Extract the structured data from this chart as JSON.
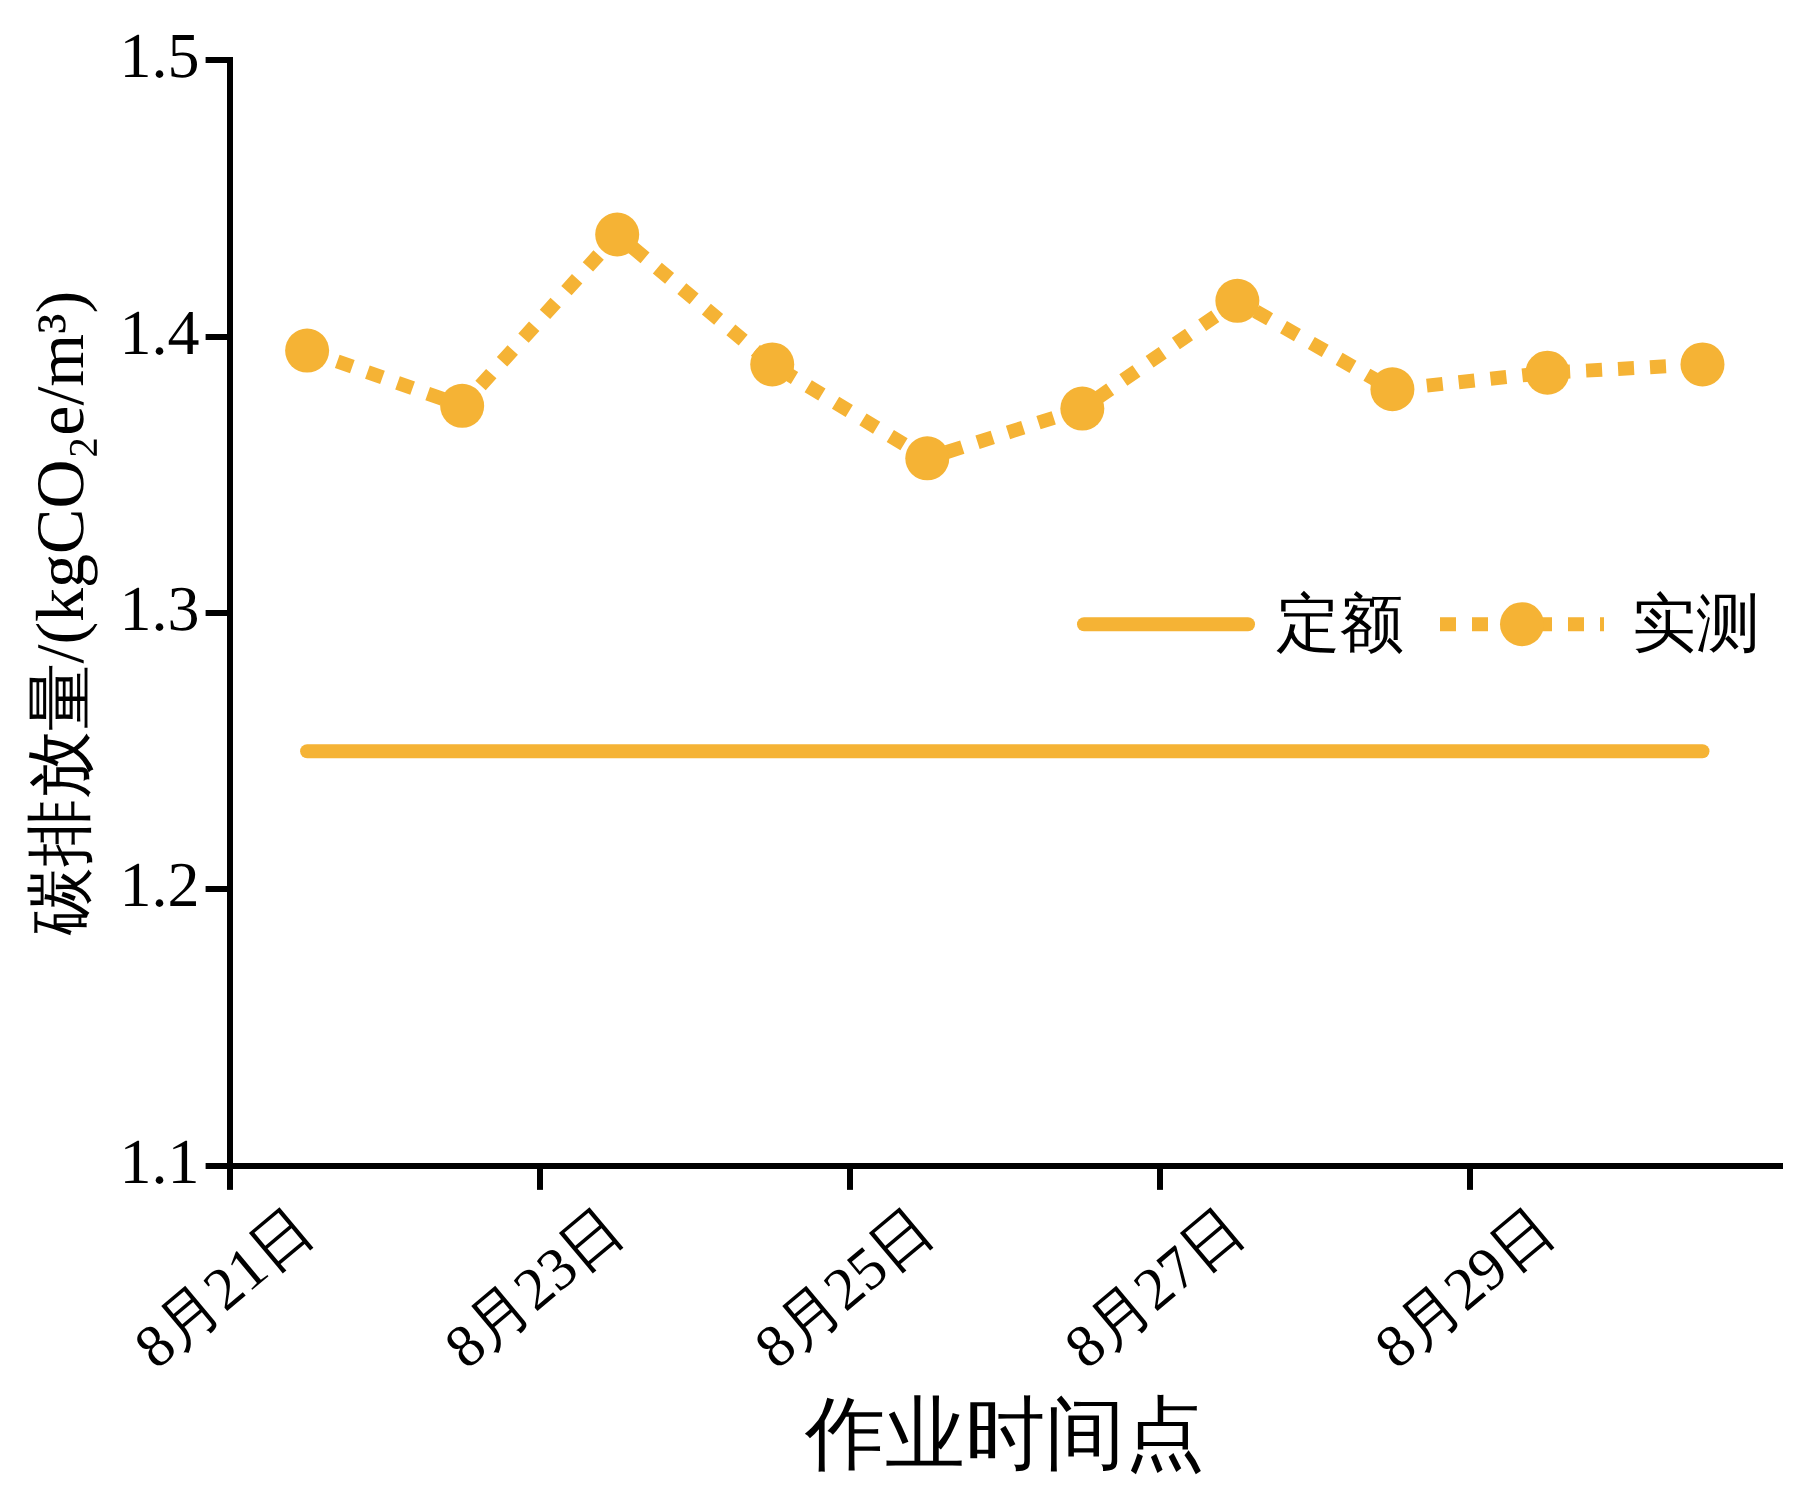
{
  "chart_data": {
    "type": "line",
    "xlabel": "作业时间点",
    "ylabel": "碳排放量/(kgCO₂e/m³)",
    "categories": [
      "8月21日",
      null,
      "8月23日",
      null,
      "8月25日",
      null,
      "8月27日",
      null,
      "8月29日",
      null
    ],
    "series": [
      {
        "name": "定额",
        "color": "#f5b335",
        "line_style": "solid",
        "marker": "none",
        "values": [
          1.25,
          1.25,
          1.25,
          1.25,
          1.25,
          1.25,
          1.25,
          1.25,
          1.25,
          1.25
        ]
      },
      {
        "name": "实测",
        "color": "#f5b335",
        "line_style": "dotted",
        "marker": "circle",
        "values": [
          1.395,
          1.375,
          1.437,
          1.39,
          1.356,
          1.374,
          1.413,
          1.381,
          1.387,
          1.39
        ]
      }
    ],
    "ylim": [
      1.1,
      1.5
    ],
    "yticks": [
      1.1,
      1.2,
      1.3,
      1.4,
      1.5
    ],
    "grid": false,
    "legend": "right"
  }
}
